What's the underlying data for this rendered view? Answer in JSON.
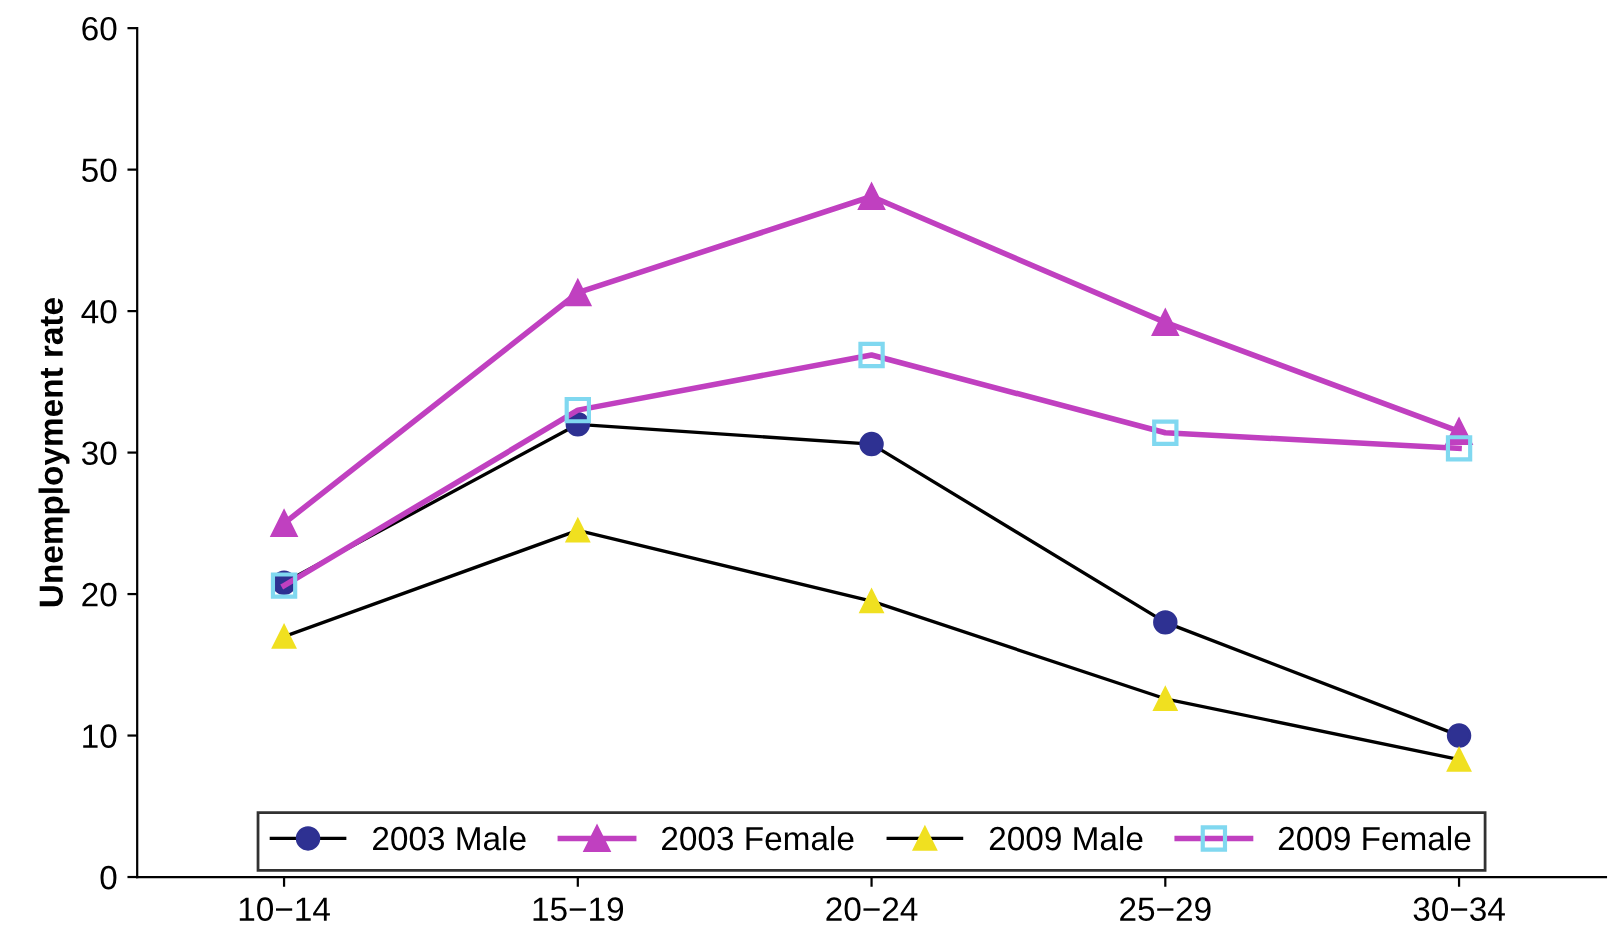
{
  "chart_data": {
    "type": "line",
    "ylabel": "Unemployment rate",
    "categories": [
      "10−14",
      "15−19",
      "20−24",
      "25−29",
      "30−34"
    ],
    "ylim": [
      0,
      60
    ],
    "yticks": [
      0,
      10,
      20,
      30,
      40,
      50,
      60
    ],
    "grid": false,
    "legend": "bottom",
    "series": [
      {
        "name": "2003 Male",
        "color": "#000000",
        "colors": [
          "#2e3192",
          "#2e3192",
          "#2e3192",
          "#2e3192",
          "#2e3192"
        ],
        "marker": "circle",
        "values": [
          20.8,
          32,
          30.6,
          18,
          10
        ]
      },
      {
        "name": "2003 Female",
        "color": "#c040c0",
        "colors": [
          "#c040c0",
          "#c040c0",
          "#c040c0",
          "#c040c0",
          "#c040c0"
        ],
        "marker": "triangle",
        "values": [
          25,
          41.3,
          48.1,
          39.2,
          31.5
        ]
      },
      {
        "name": "2009 Male",
        "color": "#000000",
        "colors": [
          "#f0e020",
          "#f0e020",
          "#f0e020",
          "#f0e020",
          "#f0e020"
        ],
        "marker": "triangle",
        "values": [
          17,
          24.5,
          19.5,
          12.6,
          8.3
        ]
      },
      {
        "name": "2009 Female",
        "color": "#c040c0",
        "colors": [
          "#80d8f0",
          "#80d8f0",
          "#80d8f0",
          "#80d8f0",
          "#80d8f0"
        ],
        "marker": "square",
        "values": [
          20.6,
          33,
          36.9,
          31.4,
          30.3
        ]
      }
    ]
  }
}
